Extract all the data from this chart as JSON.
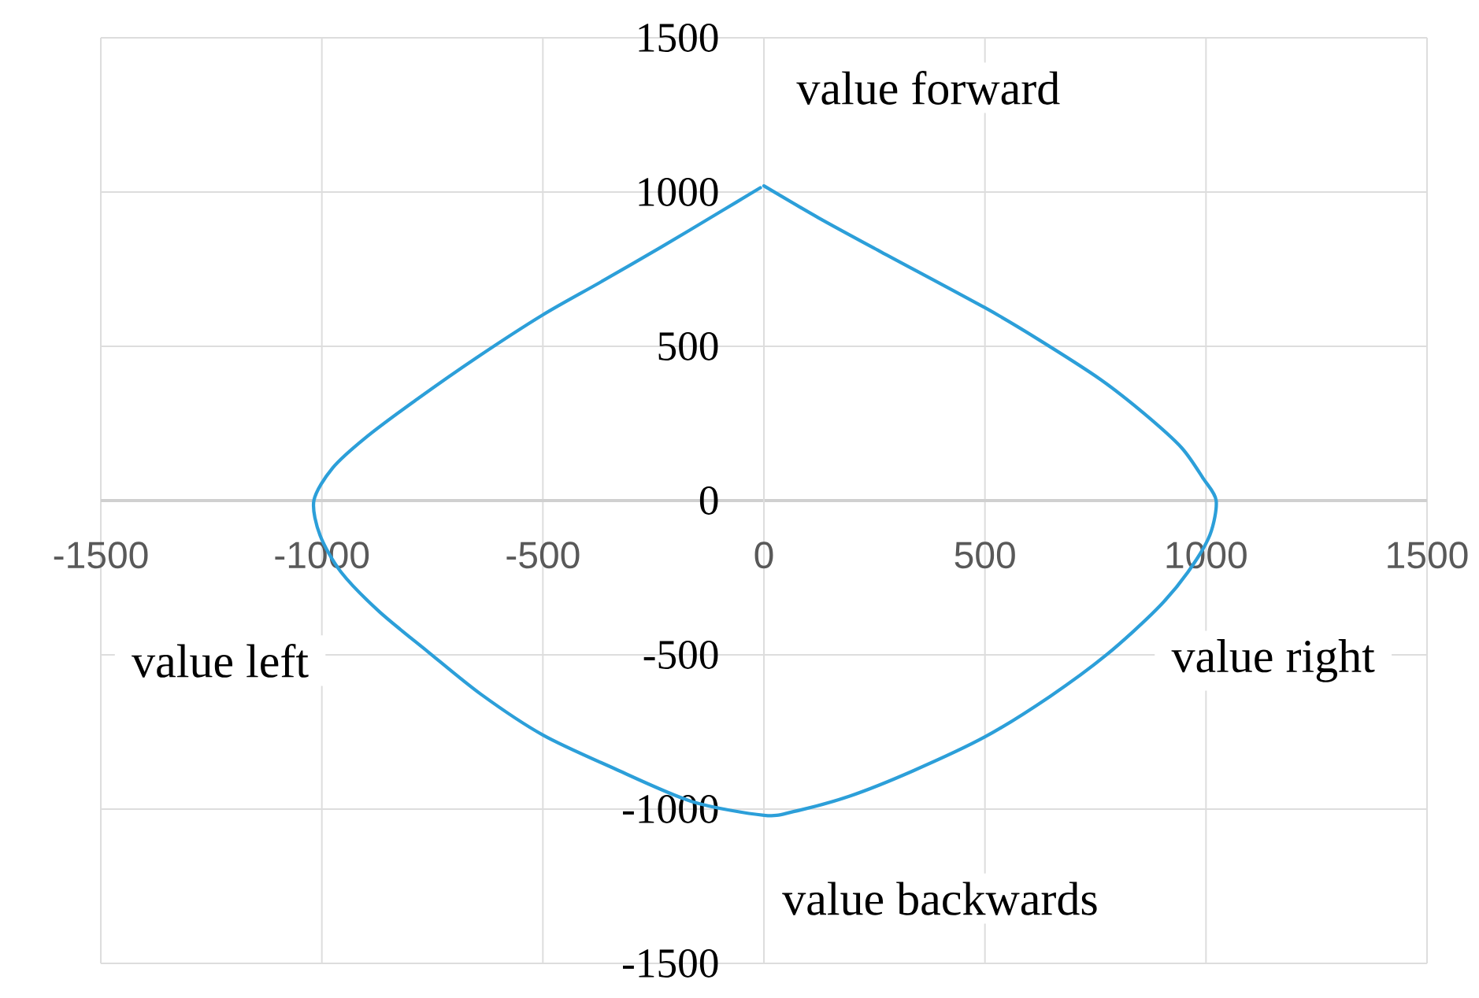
{
  "chart_data": {
    "type": "line",
    "series": [
      {
        "color": "#2c9fd9",
        "x": [
          0,
          123,
          265,
          500,
          619,
          761,
          860,
          945,
          994,
          1023,
          1009,
          959,
          888,
          775,
          647,
          500,
          336,
          194,
          67,
          0,
          -164,
          -344,
          -500,
          -640,
          -760,
          -870,
          -956,
          -1004,
          -1018,
          -976,
          -900,
          -789,
          -650,
          -500,
          -372,
          -233,
          -94,
          -8
        ],
        "values": [
          1020,
          917,
          806,
          625,
          524,
          393,
          282,
          171,
          71,
          0,
          -111,
          -232,
          -353,
          -500,
          -635,
          -766,
          -877,
          -958,
          -1008,
          -1020,
          -975,
          -865,
          -760,
          -628,
          -490,
          -360,
          -233,
          -113,
          0,
          105,
          205,
          324,
          463,
          602,
          706,
          821,
          940,
          1014
        ]
      }
    ],
    "xlim": [
      -1500,
      1500
    ],
    "ylim": [
      -1500,
      1500
    ],
    "xticks": [
      -1500,
      -1000,
      -500,
      0,
      500,
      1000,
      1500
    ],
    "yticks": [
      -1500,
      -1000,
      -500,
      0,
      500,
      1000,
      1500
    ],
    "grid": true,
    "annotations": [
      "value forward",
      "value left",
      "value right",
      "value backwards"
    ]
  }
}
